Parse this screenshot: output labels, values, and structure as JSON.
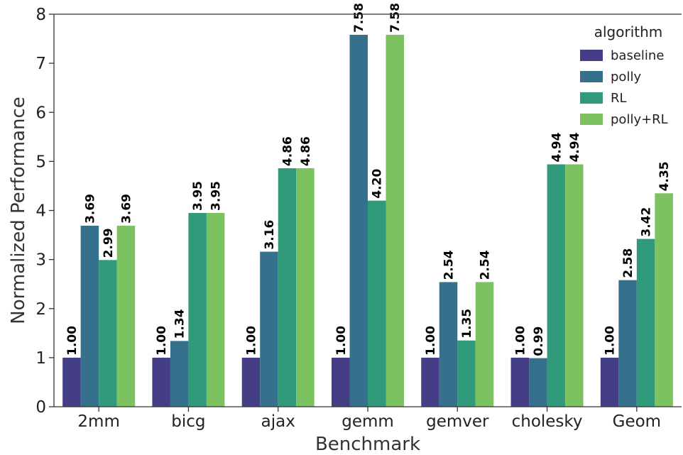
{
  "chart_data": {
    "type": "bar",
    "categories": [
      "2mm",
      "bicg",
      "ajax",
      "gemm",
      "gemver",
      "cholesky",
      "Geom"
    ],
    "series": [
      {
        "name": "baseline",
        "values": [
          1.0,
          1.0,
          1.0,
          1.0,
          1.0,
          1.0,
          1.0
        ],
        "labels": [
          "1.00",
          "1.00",
          "1.00",
          "1.00",
          "1.00",
          "1.00",
          "1.00"
        ]
      },
      {
        "name": "polly",
        "values": [
          3.69,
          1.34,
          3.16,
          7.58,
          2.54,
          0.99,
          2.58
        ],
        "labels": [
          "3.69",
          "1.34",
          "3.16",
          "7.58",
          "2.54",
          "0.99",
          "2.58"
        ]
      },
      {
        "name": "RL",
        "values": [
          2.99,
          3.95,
          4.86,
          4.2,
          1.35,
          4.94,
          3.42
        ],
        "labels": [
          "2.99",
          "3.95",
          "4.86",
          "4.20",
          "1.35",
          "4.94",
          "3.42"
        ]
      },
      {
        "name": "polly+RL",
        "values": [
          3.69,
          3.95,
          4.86,
          7.58,
          2.54,
          4.94,
          4.35
        ],
        "labels": [
          "3.69",
          "3.95",
          "4.86",
          "7.58",
          "2.54",
          "4.94",
          "4.35"
        ]
      }
    ],
    "colors": [
      "#433e85",
      "#35718d",
      "#2f9b7b",
      "#7cc260"
    ],
    "xlabel": "Benchmark",
    "ylabel": "Normalized Performance",
    "ylim": [
      0,
      8
    ],
    "yticks": [
      0,
      1,
      2,
      3,
      4,
      5,
      6,
      7,
      8
    ],
    "grid": false,
    "legend": {
      "title": "algorithm",
      "position": "top-right"
    }
  }
}
